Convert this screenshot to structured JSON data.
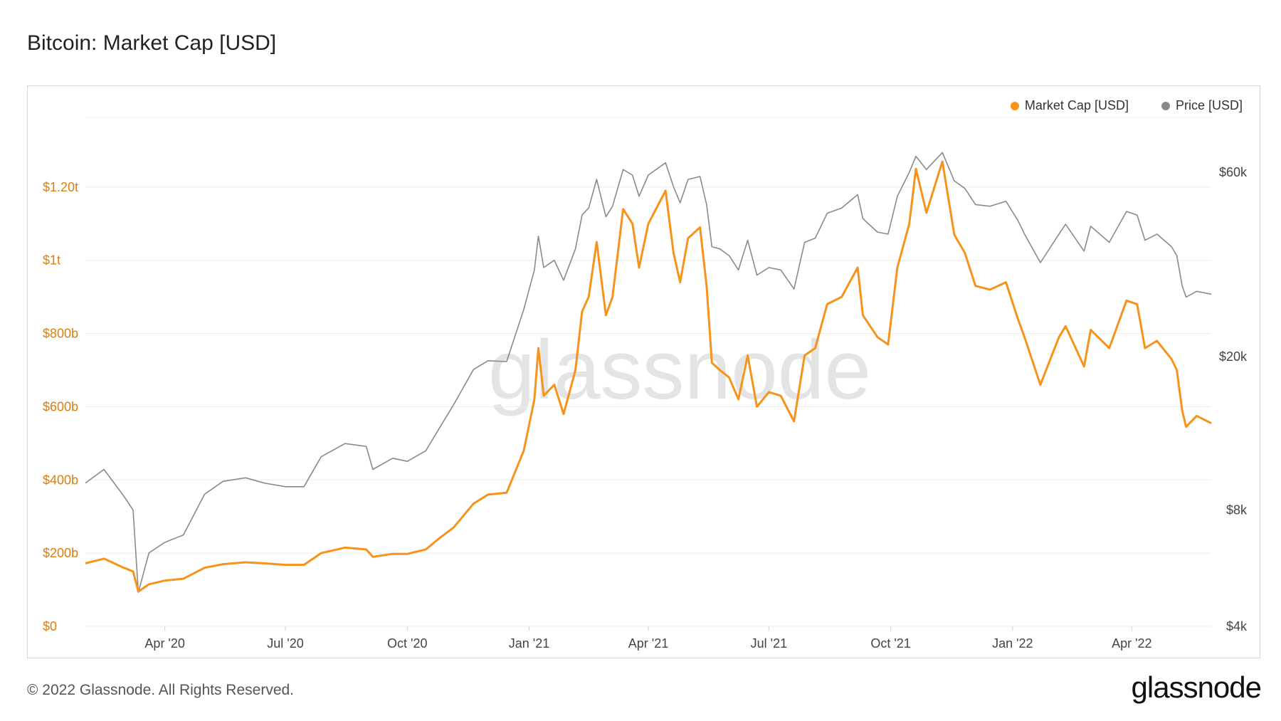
{
  "title": "Bitcoin: Market Cap [USD]",
  "footer": "© 2022 Glassnode. All Rights Reserved.",
  "logo": "glassnode",
  "watermark": "glassnode",
  "colors": {
    "market_cap": "#f7931a",
    "price": "#8a8a8a",
    "grid": "#ececec",
    "left_axis": "#d97f0e"
  },
  "chart_data": {
    "type": "line",
    "title": "Bitcoin: Market Cap [USD]",
    "legend_position": "top-right",
    "x_range": [
      "2020-02-01",
      "2022-05-31"
    ],
    "x_ticks": [
      {
        "date": "2020-04-01",
        "label": "Apr '20"
      },
      {
        "date": "2020-07-01",
        "label": "Jul '20"
      },
      {
        "date": "2020-10-01",
        "label": "Oct '20"
      },
      {
        "date": "2021-01-01",
        "label": "Jan '21"
      },
      {
        "date": "2021-04-01",
        "label": "Apr '21"
      },
      {
        "date": "2021-07-01",
        "label": "Jul '21"
      },
      {
        "date": "2021-10-01",
        "label": "Oct '21"
      },
      {
        "date": "2022-01-01",
        "label": "Jan '22"
      },
      {
        "date": "2022-04-01",
        "label": "Apr '22"
      }
    ],
    "y_left": {
      "range": [
        0,
        1400000000000
      ],
      "ticks": [
        {
          "value": 0,
          "label": "$0"
        },
        {
          "value": 200000000000,
          "label": "$200b"
        },
        {
          "value": 400000000000,
          "label": "$400b"
        },
        {
          "value": 600000000000,
          "label": "$600b"
        },
        {
          "value": 800000000000,
          "label": "$800b"
        },
        {
          "value": 1000000000000,
          "label": "$1t"
        },
        {
          "value": 1200000000000,
          "label": "$1.20t"
        }
      ]
    },
    "y_right": {
      "scale": "log",
      "range": [
        4000,
        85000
      ],
      "ticks": [
        {
          "value": 4000,
          "label": "$4k"
        },
        {
          "value": 8000,
          "label": "$8k"
        },
        {
          "value": 20000,
          "label": "$20k"
        },
        {
          "value": 60000,
          "label": "$60k"
        }
      ]
    },
    "series": [
      {
        "name": "Market Cap [USD]",
        "axis": "left",
        "color": "#f7931a",
        "points": [
          [
            "2020-02-01",
            172000000000
          ],
          [
            "2020-02-15",
            185000000000
          ],
          [
            "2020-03-01",
            160000000000
          ],
          [
            "2020-03-08",
            150000000000
          ],
          [
            "2020-03-12",
            95000000000
          ],
          [
            "2020-03-20",
            115000000000
          ],
          [
            "2020-04-01",
            125000000000
          ],
          [
            "2020-04-15",
            130000000000
          ],
          [
            "2020-05-01",
            160000000000
          ],
          [
            "2020-05-15",
            170000000000
          ],
          [
            "2020-06-01",
            175000000000
          ],
          [
            "2020-06-15",
            172000000000
          ],
          [
            "2020-07-01",
            168000000000
          ],
          [
            "2020-07-15",
            168000000000
          ],
          [
            "2020-07-28",
            200000000000
          ],
          [
            "2020-08-15",
            215000000000
          ],
          [
            "2020-08-31",
            210000000000
          ],
          [
            "2020-09-05",
            190000000000
          ],
          [
            "2020-09-20",
            198000000000
          ],
          [
            "2020-10-01",
            198000000000
          ],
          [
            "2020-10-15",
            210000000000
          ],
          [
            "2020-10-25",
            240000000000
          ],
          [
            "2020-11-05",
            270000000000
          ],
          [
            "2020-11-20",
            335000000000
          ],
          [
            "2020-12-01",
            360000000000
          ],
          [
            "2020-12-15",
            365000000000
          ],
          [
            "2020-12-28",
            480000000000
          ],
          [
            "2021-01-05",
            620000000000
          ],
          [
            "2021-01-08",
            760000000000
          ],
          [
            "2021-01-12",
            630000000000
          ],
          [
            "2021-01-20",
            660000000000
          ],
          [
            "2021-01-27",
            580000000000
          ],
          [
            "2021-02-05",
            700000000000
          ],
          [
            "2021-02-10",
            860000000000
          ],
          [
            "2021-02-15",
            900000000000
          ],
          [
            "2021-02-21",
            1050000000000
          ],
          [
            "2021-02-28",
            850000000000
          ],
          [
            "2021-03-05",
            900000000000
          ],
          [
            "2021-03-13",
            1140000000000
          ],
          [
            "2021-03-20",
            1100000000000
          ],
          [
            "2021-03-25",
            980000000000
          ],
          [
            "2021-04-01",
            1100000000000
          ],
          [
            "2021-04-14",
            1190000000000
          ],
          [
            "2021-04-20",
            1020000000000
          ],
          [
            "2021-04-25",
            940000000000
          ],
          [
            "2021-05-01",
            1060000000000
          ],
          [
            "2021-05-10",
            1090000000000
          ],
          [
            "2021-05-15",
            930000000000
          ],
          [
            "2021-05-19",
            720000000000
          ],
          [
            "2021-05-25",
            700000000000
          ],
          [
            "2021-06-01",
            680000000000
          ],
          [
            "2021-06-08",
            620000000000
          ],
          [
            "2021-06-15",
            740000000000
          ],
          [
            "2021-06-22",
            600000000000
          ],
          [
            "2021-07-01",
            640000000000
          ],
          [
            "2021-07-10",
            630000000000
          ],
          [
            "2021-07-20",
            560000000000
          ],
          [
            "2021-07-28",
            740000000000
          ],
          [
            "2021-08-05",
            760000000000
          ],
          [
            "2021-08-14",
            880000000000
          ],
          [
            "2021-08-25",
            900000000000
          ],
          [
            "2021-09-06",
            980000000000
          ],
          [
            "2021-09-10",
            850000000000
          ],
          [
            "2021-09-21",
            790000000000
          ],
          [
            "2021-09-29",
            770000000000
          ],
          [
            "2021-10-06",
            980000000000
          ],
          [
            "2021-10-15",
            1100000000000
          ],
          [
            "2021-10-20",
            1250000000000
          ],
          [
            "2021-10-28",
            1130000000000
          ],
          [
            "2021-11-09",
            1270000000000
          ],
          [
            "2021-11-18",
            1070000000000
          ],
          [
            "2021-11-26",
            1020000000000
          ],
          [
            "2021-12-04",
            930000000000
          ],
          [
            "2021-12-15",
            920000000000
          ],
          [
            "2021-12-27",
            940000000000
          ],
          [
            "2022-01-05",
            840000000000
          ],
          [
            "2022-01-10",
            790000000000
          ],
          [
            "2022-01-22",
            660000000000
          ],
          [
            "2022-02-05",
            790000000000
          ],
          [
            "2022-02-10",
            820000000000
          ],
          [
            "2022-02-24",
            710000000000
          ],
          [
            "2022-03-01",
            810000000000
          ],
          [
            "2022-03-15",
            760000000000
          ],
          [
            "2022-03-28",
            890000000000
          ],
          [
            "2022-04-05",
            880000000000
          ],
          [
            "2022-04-11",
            760000000000
          ],
          [
            "2022-04-20",
            780000000000
          ],
          [
            "2022-05-01",
            730000000000
          ],
          [
            "2022-05-05",
            700000000000
          ],
          [
            "2022-05-09",
            590000000000
          ],
          [
            "2022-05-12",
            545000000000
          ],
          [
            "2022-05-20",
            575000000000
          ],
          [
            "2022-05-31",
            555000000000
          ]
        ]
      },
      {
        "name": "Price [USD]",
        "axis": "right",
        "color": "#8a8a8a",
        "points": [
          [
            "2020-02-01",
            9400
          ],
          [
            "2020-02-15",
            10200
          ],
          [
            "2020-03-01",
            8700
          ],
          [
            "2020-03-08",
            8000
          ],
          [
            "2020-03-12",
            4900
          ],
          [
            "2020-03-20",
            6200
          ],
          [
            "2020-04-01",
            6600
          ],
          [
            "2020-04-15",
            6900
          ],
          [
            "2020-05-01",
            8800
          ],
          [
            "2020-05-15",
            9500
          ],
          [
            "2020-06-01",
            9700
          ],
          [
            "2020-06-15",
            9400
          ],
          [
            "2020-07-01",
            9200
          ],
          [
            "2020-07-15",
            9200
          ],
          [
            "2020-07-28",
            11000
          ],
          [
            "2020-08-15",
            11900
          ],
          [
            "2020-08-31",
            11700
          ],
          [
            "2020-09-05",
            10200
          ],
          [
            "2020-09-20",
            10900
          ],
          [
            "2020-10-01",
            10700
          ],
          [
            "2020-10-15",
            11400
          ],
          [
            "2020-10-25",
            13000
          ],
          [
            "2020-11-05",
            15000
          ],
          [
            "2020-11-20",
            18500
          ],
          [
            "2020-12-01",
            19500
          ],
          [
            "2020-12-15",
            19400
          ],
          [
            "2020-12-28",
            26500
          ],
          [
            "2021-01-05",
            33500
          ],
          [
            "2021-01-08",
            41000
          ],
          [
            "2021-01-12",
            34000
          ],
          [
            "2021-01-20",
            35500
          ],
          [
            "2021-01-27",
            31500
          ],
          [
            "2021-02-05",
            38000
          ],
          [
            "2021-02-10",
            46500
          ],
          [
            "2021-02-15",
            48500
          ],
          [
            "2021-02-21",
            57500
          ],
          [
            "2021-02-28",
            46000
          ],
          [
            "2021-03-05",
            49000
          ],
          [
            "2021-03-13",
            61000
          ],
          [
            "2021-03-20",
            59000
          ],
          [
            "2021-03-25",
            52000
          ],
          [
            "2021-04-01",
            59000
          ],
          [
            "2021-04-14",
            63500
          ],
          [
            "2021-04-20",
            55000
          ],
          [
            "2021-04-25",
            50000
          ],
          [
            "2021-05-01",
            57500
          ],
          [
            "2021-05-10",
            58500
          ],
          [
            "2021-05-15",
            49500
          ],
          [
            "2021-05-19",
            38500
          ],
          [
            "2021-05-25",
            38000
          ],
          [
            "2021-06-01",
            36500
          ],
          [
            "2021-06-08",
            33500
          ],
          [
            "2021-06-15",
            40000
          ],
          [
            "2021-06-22",
            32500
          ],
          [
            "2021-07-01",
            34000
          ],
          [
            "2021-07-10",
            33500
          ],
          [
            "2021-07-20",
            29900
          ],
          [
            "2021-07-28",
            39500
          ],
          [
            "2021-08-05",
            40500
          ],
          [
            "2021-08-14",
            47000
          ],
          [
            "2021-08-25",
            48500
          ],
          [
            "2021-09-06",
            52500
          ],
          [
            "2021-09-10",
            45500
          ],
          [
            "2021-09-21",
            42000
          ],
          [
            "2021-09-29",
            41500
          ],
          [
            "2021-10-06",
            52000
          ],
          [
            "2021-10-15",
            60000
          ],
          [
            "2021-10-20",
            66000
          ],
          [
            "2021-10-28",
            61000
          ],
          [
            "2021-11-09",
            67500
          ],
          [
            "2021-11-18",
            57000
          ],
          [
            "2021-11-26",
            54500
          ],
          [
            "2021-12-04",
            49500
          ],
          [
            "2021-12-15",
            49000
          ],
          [
            "2021-12-27",
            50500
          ],
          [
            "2022-01-05",
            45000
          ],
          [
            "2022-01-10",
            41500
          ],
          [
            "2022-01-22",
            35000
          ],
          [
            "2022-02-05",
            41500
          ],
          [
            "2022-02-10",
            44000
          ],
          [
            "2022-02-24",
            37500
          ],
          [
            "2022-03-01",
            43500
          ],
          [
            "2022-03-15",
            39500
          ],
          [
            "2022-03-28",
            47500
          ],
          [
            "2022-04-05",
            46500
          ],
          [
            "2022-04-11",
            40000
          ],
          [
            "2022-04-20",
            41500
          ],
          [
            "2022-05-01",
            38500
          ],
          [
            "2022-05-05",
            36500
          ],
          [
            "2022-05-09",
            30500
          ],
          [
            "2022-05-12",
            28500
          ],
          [
            "2022-05-20",
            29500
          ],
          [
            "2022-05-31",
            29000
          ]
        ]
      }
    ]
  }
}
